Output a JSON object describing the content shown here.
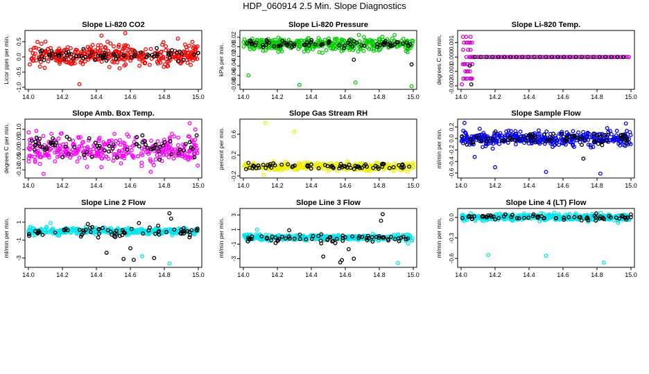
{
  "page": {
    "title": "HDP_060914  2.5 Min. Slope Diagnostics"
  },
  "chart_data": [
    {
      "type": "scatter",
      "title": "Slope Li-820 CO2",
      "ylabel": "Licor ppm per min.",
      "xlim": [
        14.0,
        15.0
      ],
      "ylim": [
        -1.0,
        0.8
      ],
      "xticks": [
        "14.0",
        "14.2",
        "14.4",
        "14.6",
        "14.8",
        "15.0"
      ],
      "yticks": [
        {
          "v": -1.0,
          "label": "-1.0"
        },
        {
          "v": -0.5,
          "label": "-0.5"
        },
        {
          "v": 0.0,
          "label": "0.0"
        },
        {
          "v": 0.5,
          "label": "0.5"
        }
      ],
      "series": [
        {
          "color": "#ff0000",
          "center": 0.05,
          "spread": 0.22,
          "n": 360,
          "outliers": [
            [
              14.3,
              -0.9
            ],
            [
              14.43,
              0.7
            ],
            [
              14.57,
              0.78
            ],
            [
              14.88,
              0.6
            ]
          ]
        },
        {
          "color": "#000000",
          "center": 0.05,
          "spread": 0.12,
          "n": 70,
          "outliers": []
        }
      ]
    },
    {
      "type": "scatter",
      "title": "Slope Li-820 Pressure",
      "ylabel": "kPa per min.",
      "xlim": [
        14.0,
        15.0
      ],
      "ylim": [
        -0.085,
        0.03
      ],
      "xticks": [
        "14.0",
        "14.2",
        "14.4",
        "14.6",
        "14.8",
        "15.0"
      ],
      "yticks": [
        {
          "v": -0.08,
          "label": "-0.08"
        },
        {
          "v": -0.06,
          "label": "-0.06"
        },
        {
          "v": -0.04,
          "label": "-0.04"
        },
        {
          "v": -0.02,
          "label": "-0.02"
        },
        {
          "v": 0.0,
          "label": "0.00"
        },
        {
          "v": 0.02,
          "label": "0.02"
        }
      ],
      "series": [
        {
          "color": "#00cc00",
          "center": 0.005,
          "spread": 0.009,
          "n": 380,
          "outliers": [
            [
              14.03,
              -0.06
            ],
            [
              14.33,
              -0.08
            ],
            [
              14.66,
              -0.075
            ],
            [
              14.68,
              0.025
            ],
            [
              14.89,
              0.025
            ],
            [
              14.99,
              -0.083
            ]
          ]
        },
        {
          "color": "#000000",
          "center": 0.005,
          "spread": 0.005,
          "n": 70,
          "outliers": [
            [
              14.65,
              -0.027
            ],
            [
              14.99,
              -0.037
            ]
          ]
        }
      ]
    },
    {
      "type": "scatter",
      "title": "Slope Li-820 Temp.",
      "ylabel": "degrees C per min.",
      "xlim": [
        14.0,
        15.0
      ],
      "ylim": [
        -0.0021,
        0.0017
      ],
      "xticks": [
        "14.0",
        "14.2",
        "14.4",
        "14.6",
        "14.8",
        "15.0"
      ],
      "yticks": [
        {
          "v": -0.002,
          "label": "-0.002"
        },
        {
          "v": -0.001,
          "label": "-0.001"
        },
        {
          "v": 0.0,
          "label": "0.000"
        },
        {
          "v": 0.001,
          "label": "0.001"
        }
      ],
      "series": [
        {
          "color": "#cc00cc",
          "center": 0.0,
          "spread": 0.0,
          "n": 0,
          "outliers": []
        },
        {
          "color": "#000000",
          "center": 0.0,
          "spread": 0.0,
          "n": 0,
          "outliers": []
        }
      ]
    },
    {
      "type": "scatter",
      "title": "Slope Amb. Box Temp.",
      "ylabel": "degrees C per min.",
      "xlim": [
        14.0,
        15.0
      ],
      "ylim": [
        -0.13,
        0.14
      ],
      "xticks": [
        "14.0",
        "14.2",
        "14.4",
        "14.6",
        "14.8",
        "15.0"
      ],
      "yticks": [
        {
          "v": -0.1,
          "label": "-0.10"
        },
        {
          "v": -0.05,
          "label": "-0.05"
        },
        {
          "v": 0.0,
          "label": "0.00"
        },
        {
          "v": 0.05,
          "label": "0.05"
        },
        {
          "v": 0.1,
          "label": "0.10"
        }
      ],
      "series": [
        {
          "color": "#ff00ff",
          "center": 0.0,
          "spread": 0.045,
          "n": 360,
          "outliers": [
            [
              14.09,
              -0.12
            ],
            [
              14.95,
              0.13
            ],
            [
              14.72,
              -0.11
            ]
          ]
        },
        {
          "color": "#000000",
          "center": 0.01,
          "spread": 0.035,
          "n": 70,
          "outliers": [
            [
              14.99,
              0.07
            ]
          ]
        }
      ]
    },
    {
      "type": "scatter",
      "title": "Slope Gas Stream RH",
      "ylabel": "percent per min.",
      "xlim": [
        14.0,
        15.0
      ],
      "ylim": [
        -0.2,
        0.85
      ],
      "xticks": [
        "14.0",
        "14.2",
        "14.4",
        "14.6",
        "14.8",
        "15.0"
      ],
      "yticks": [
        {
          "v": -0.2,
          "label": "-0.2"
        },
        {
          "v": 0.2,
          "label": "0.2"
        },
        {
          "v": 0.6,
          "label": "0.6"
        }
      ],
      "series": [
        {
          "color": "#eeee00",
          "center": -0.02,
          "spread": 0.045,
          "n": 380,
          "outliers": [
            [
              14.13,
              0.82
            ],
            [
              14.3,
              0.65
            ],
            [
              14.12,
              -0.18
            ]
          ]
        },
        {
          "color": "#000000",
          "center": -0.02,
          "spread": 0.035,
          "n": 70,
          "outliers": [
            [
              14.03,
              0.05
            ]
          ]
        }
      ]
    },
    {
      "type": "scatter",
      "title": "Slope Sample Flow",
      "ylabel": "ml/min per min.",
      "xlim": [
        14.0,
        15.0
      ],
      "ylim": [
        -0.65,
        0.3
      ],
      "xticks": [
        "14.0",
        "14.2",
        "14.4",
        "14.6",
        "14.8",
        "15.0"
      ],
      "yticks": [
        {
          "v": -0.6,
          "label": "-0.6"
        },
        {
          "v": -0.4,
          "label": "-0.4"
        },
        {
          "v": -0.2,
          "label": "-0.2"
        },
        {
          "v": 0.0,
          "label": "0.0"
        },
        {
          "v": 0.2,
          "label": "0.2"
        }
      ],
      "series": [
        {
          "color": "#0000ee",
          "center": 0.0,
          "spread": 0.08,
          "n": 380,
          "outliers": [
            [
              14.02,
              0.27
            ],
            [
              14.08,
              -0.32
            ],
            [
              14.2,
              -0.5
            ],
            [
              14.5,
              -0.58
            ],
            [
              14.82,
              -0.61
            ],
            [
              14.86,
              0.18
            ],
            [
              14.97,
              0.26
            ]
          ]
        },
        {
          "color": "#000000",
          "center": 0.0,
          "spread": 0.06,
          "n": 70,
          "outliers": [
            [
              14.72,
              -0.35
            ]
          ]
        }
      ]
    },
    {
      "type": "scatter",
      "title": "Slope Line 2 Flow",
      "ylabel": "ml/min per min.",
      "xlim": [
        14.0,
        15.0
      ],
      "ylim": [
        -3.8,
        2.3
      ],
      "xticks": [
        "14.0",
        "14.2",
        "14.4",
        "14.6",
        "14.8",
        "15.0"
      ],
      "yticks": [
        {
          "v": -3,
          "label": "-3"
        },
        {
          "v": -1,
          "label": "-1"
        },
        {
          "v": 1,
          "label": "1"
        }
      ],
      "series": [
        {
          "color": "#00e5ee",
          "center": 0.0,
          "spread": 0.22,
          "n": 380,
          "outliers": [
            [
              14.67,
              -2.8
            ],
            [
              14.83,
              -3.6
            ],
            [
              14.13,
              0.9
            ]
          ]
        },
        {
          "color": "#000000",
          "center": -0.1,
          "spread": 0.35,
          "n": 70,
          "outliers": [
            [
              14.46,
              -2.4
            ],
            [
              14.56,
              -3.1
            ],
            [
              14.62,
              -3.2
            ],
            [
              14.6,
              -1.9
            ],
            [
              14.74,
              -3.0
            ],
            [
              14.83,
              2.0
            ],
            [
              14.84,
              1.4
            ],
            [
              14.35,
              0.8
            ],
            [
              14.65,
              0.9
            ]
          ]
        }
      ]
    },
    {
      "type": "scatter",
      "title": "Slope Line 3 Flow",
      "ylabel": "ml/min per min.",
      "xlim": [
        14.0,
        15.0
      ],
      "ylim": [
        -3.9,
        3.6
      ],
      "xticks": [
        "14.0",
        "14.2",
        "14.4",
        "14.6",
        "14.8",
        "15.0"
      ],
      "yticks": [
        {
          "v": -3,
          "label": "-3"
        },
        {
          "v": -1,
          "label": "-1"
        },
        {
          "v": 1,
          "label": "1"
        },
        {
          "v": 3,
          "label": "3"
        }
      ],
      "series": [
        {
          "color": "#00e5ee",
          "center": -0.1,
          "spread": 0.25,
          "n": 380,
          "outliers": [
            [
              14.08,
              1.0
            ],
            [
              14.91,
              -3.6
            ],
            [
              14.97,
              -0.9
            ]
          ]
        },
        {
          "color": "#000000",
          "center": -0.2,
          "spread": 0.35,
          "n": 70,
          "outliers": [
            [
              14.47,
              -2.7
            ],
            [
              14.57,
              -3.5
            ],
            [
              14.58,
              -3.2
            ],
            [
              14.65,
              -3.0
            ],
            [
              14.82,
              3.1
            ],
            [
              14.81,
              2.2
            ],
            [
              14.62,
              -1.7
            ],
            [
              14.27,
              0.9
            ]
          ]
        }
      ]
    },
    {
      "type": "scatter",
      "title": "Slope Line 4 (LT) Flow",
      "ylabel": "ml/min per min.",
      "xlim": [
        14.0,
        15.0
      ],
      "ylim": [
        -0.7,
        0.1
      ],
      "xticks": [
        "14.0",
        "14.2",
        "14.4",
        "14.6",
        "14.8",
        "15.0"
      ],
      "yticks": [
        {
          "v": -0.6,
          "label": "-0.6"
        },
        {
          "v": -0.3,
          "label": "-0.3"
        },
        {
          "v": 0.0,
          "label": "0.0"
        }
      ],
      "series": [
        {
          "color": "#00e5ee",
          "center": 0.0,
          "spread": 0.035,
          "n": 380,
          "outliers": [
            [
              14.16,
              -0.55
            ],
            [
              14.5,
              -0.56
            ],
            [
              14.84,
              -0.66
            ]
          ]
        },
        {
          "color": "#000000",
          "center": 0.0,
          "spread": 0.03,
          "n": 70,
          "outliers": []
        }
      ]
    }
  ]
}
